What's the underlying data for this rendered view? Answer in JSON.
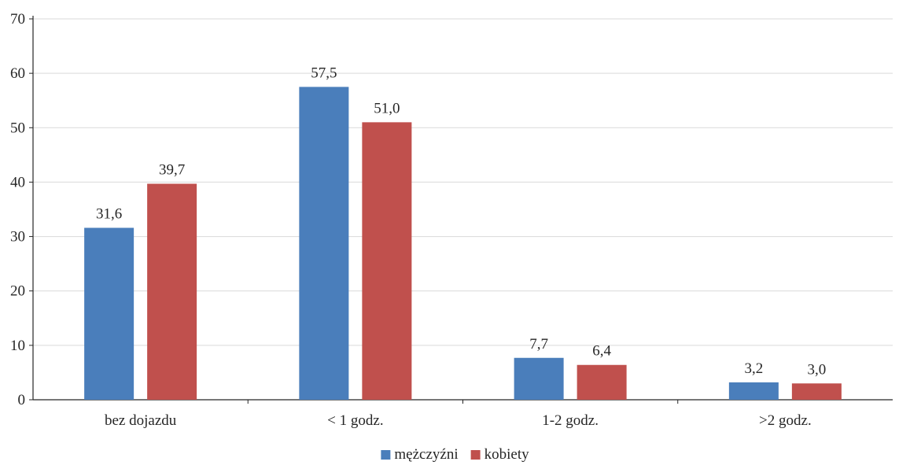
{
  "chart_data": {
    "type": "bar",
    "categories": [
      "bez dojazdu",
      "< 1 godz.",
      "1-2 godz.",
      ">2 godz."
    ],
    "series": [
      {
        "name": "mężczyźni",
        "values": [
          31.6,
          57.5,
          7.7,
          3.2
        ],
        "labels": [
          "31,6",
          "57,5",
          "7,7",
          "3,2"
        ],
        "color": "#4a7ebb"
      },
      {
        "name": "kobiety",
        "values": [
          39.7,
          51.0,
          6.4,
          3.0
        ],
        "labels": [
          "39,7",
          "51,0",
          "6,4",
          "3,0"
        ],
        "color": "#c0504d"
      }
    ],
    "yticks": [
      "0",
      "10",
      "20",
      "30",
      "40",
      "50",
      "60",
      "70"
    ],
    "ylim": [
      0,
      70
    ],
    "grid": true,
    "legend_position": "bottom"
  }
}
